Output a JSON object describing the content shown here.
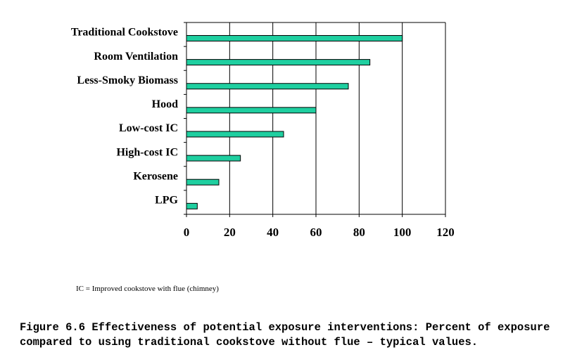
{
  "chart_data": {
    "type": "bar",
    "orientation": "horizontal",
    "categories": [
      "Traditional Cookstove",
      "Room Ventilation",
      "Less-Smoky Biomass",
      "Hood",
      "Low-cost IC",
      "High-cost IC",
      "Kerosene",
      "LPG"
    ],
    "values": [
      100,
      85,
      75,
      60,
      45,
      25,
      15,
      5
    ],
    "xlim": [
      0,
      120
    ],
    "xticks": [
      "0",
      "20",
      "40",
      "60",
      "80",
      "100",
      "120"
    ],
    "grid": "vertical",
    "bar_color": "#1fcfa0",
    "title": "",
    "xlabel": "",
    "ylabel": ""
  },
  "footnote": "IC = Improved cookstove with flue (chimney)",
  "caption": "Figure 6.6 Effectiveness of potential exposure interventions: Percent of exposure compared to using traditional cookstove without flue – typical values."
}
